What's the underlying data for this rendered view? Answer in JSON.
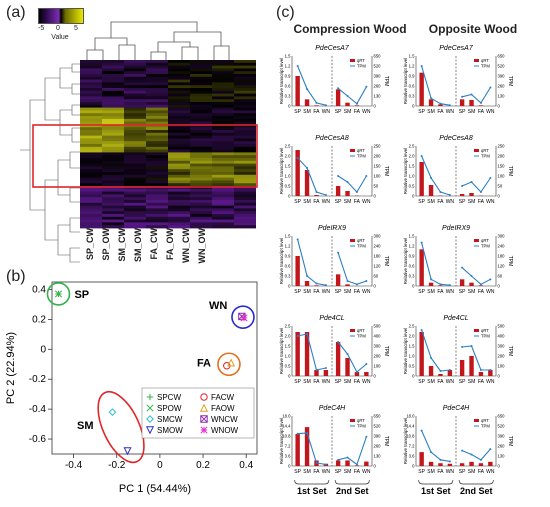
{
  "panel_a": {
    "label": "(a)",
    "colorkey": {
      "ticks": [
        "-5",
        "0",
        "5"
      ],
      "label": "Value"
    },
    "columns": [
      "SP_CW",
      "SP_OW",
      "SM_CW",
      "SM_OW",
      "FA_CW",
      "FA_OW",
      "WN_CW",
      "WN_OW"
    ]
  },
  "panel_b": {
    "label": "(b)",
    "xlabel": "PC 1 (54.44%)",
    "ylabel": "PC 2 (22.94%)",
    "xticks": [
      "-0.4",
      "-0.2",
      "0",
      "0.2",
      "0.4"
    ],
    "yticks": [
      "0.4",
      "0.2",
      "0",
      "-0.2",
      "-0.4",
      "-0.6"
    ],
    "groups": [
      "SP",
      "SM",
      "FA",
      "WN"
    ],
    "legend": [
      "SPCW",
      "SPOW",
      "SMCW",
      "SMOW",
      "FACW",
      "FAOW",
      "WNCW",
      "WNOW"
    ],
    "colors": {
      "SP": "#2fb34a",
      "SM": "#e0262a",
      "FA": "#e07020",
      "WN": "#2a2ad0"
    }
  },
  "panel_c": {
    "label": "(c)",
    "col_titles": [
      "Compression Wood",
      "Opposite Wood"
    ],
    "genes": [
      "PdeCesA7",
      "PdeCesA8",
      "PdeIRX9",
      "Pde4CL",
      "PdeC4H"
    ],
    "xcats": [
      "SP",
      "SM",
      "FA",
      "WN",
      "SP",
      "SM",
      "FA",
      "WN"
    ],
    "ylabel_left": "Relative transcript level",
    "ylabel_right": "TPM",
    "legend": [
      "qRT",
      "TPM"
    ],
    "set1": "1st Set",
    "set2": "2nd Set",
    "bar_color": "#c0161c",
    "line_color": "#2b7fc8"
  },
  "chart_data": [
    {
      "type": "bar",
      "title": "PdeCesA7 (Compression Wood)",
      "categories": [
        "SP",
        "SM",
        "FA",
        "WN",
        "SP",
        "SM",
        "FA",
        "WN"
      ],
      "series": [
        {
          "name": "qRT",
          "values": [
            0.9,
            0.2,
            0.02,
            0.0,
            0.5,
            0.1,
            0.02,
            0.0
          ]
        },
        {
          "name": "TPM",
          "values": [
            520,
            220,
            40,
            10,
            230,
            130,
            30,
            250
          ]
        }
      ],
      "ylim": [
        0,
        1.5
      ],
      "y2lim": [
        0,
        650
      ],
      "yticks": [
        "0",
        "0.3",
        "0.6",
        "0.9",
        "1.2",
        "1.5"
      ],
      "y2ticks": [
        "0",
        "130",
        "260",
        "390",
        "520",
        "650"
      ]
    },
    {
      "type": "bar",
      "title": "PdeCesA7 (Opposite Wood)",
      "categories": [
        "SP",
        "SM",
        "FA",
        "WN",
        "SP",
        "SM",
        "FA",
        "WN"
      ],
      "series": [
        {
          "name": "qRT",
          "values": [
            1.0,
            0.2,
            0.05,
            0.0,
            0.2,
            0.18,
            0.02,
            0.0
          ]
        },
        {
          "name": "TPM",
          "values": [
            520,
            100,
            30,
            10,
            120,
            150,
            40,
            240
          ]
        }
      ],
      "ylim": [
        0,
        1.5
      ],
      "y2lim": [
        0,
        650
      ],
      "yticks": [
        "0",
        "0.3",
        "0.6",
        "0.9",
        "1.2",
        "1.5"
      ],
      "y2ticks": [
        "0",
        "130",
        "260",
        "390",
        "520",
        "650"
      ]
    },
    {
      "type": "bar",
      "title": "PdeCesA8 (Compression Wood)",
      "categories": [
        "SP",
        "SM",
        "FA",
        "WN",
        "SP",
        "SM",
        "FA",
        "WN"
      ],
      "series": [
        {
          "name": "qRT",
          "values": [
            2.3,
            1.3,
            0.05,
            0.0,
            0.5,
            0.25,
            0.02,
            0.0
          ]
        },
        {
          "name": "TPM",
          "values": [
            190,
            140,
            20,
            5,
            100,
            70,
            20,
            100
          ]
        }
      ],
      "ylim": [
        0,
        2.5
      ],
      "y2lim": [
        0,
        250
      ],
      "yticks": [
        "0",
        "0.5",
        "1.0",
        "1.5",
        "2.0",
        "2.5"
      ],
      "y2ticks": [
        "0",
        "50",
        "100",
        "150",
        "200",
        "250"
      ]
    },
    {
      "type": "bar",
      "title": "PdeCesA8 (Opposite Wood)",
      "categories": [
        "SP",
        "SM",
        "FA",
        "WN",
        "SP",
        "SM",
        "FA",
        "WN"
      ],
      "series": [
        {
          "name": "qRT",
          "values": [
            1.7,
            0.55,
            0.02,
            0.0,
            0.1,
            0.15,
            0.02,
            0.0
          ]
        },
        {
          "name": "TPM",
          "values": [
            200,
            90,
            20,
            5,
            50,
            70,
            20,
            90
          ]
        }
      ],
      "ylim": [
        0,
        2.5
      ],
      "y2lim": [
        0,
        250
      ],
      "yticks": [
        "0",
        "0.5",
        "1.0",
        "1.5",
        "2.0",
        "2.5"
      ],
      "y2ticks": [
        "0",
        "50",
        "100",
        "150",
        "200",
        "250"
      ]
    },
    {
      "type": "bar",
      "title": "PdeIRX9 (Compression Wood)",
      "categories": [
        "SP",
        "SM",
        "FA",
        "WN",
        "SP",
        "SM",
        "FA",
        "WN"
      ],
      "series": [
        {
          "name": "qRT",
          "values": [
            0.9,
            0.15,
            0.02,
            0.0,
            0.35,
            0.05,
            0.0,
            0.0
          ]
        },
        {
          "name": "TPM",
          "values": [
            280,
            60,
            15,
            5,
            200,
            30,
            10,
            30
          ]
        }
      ],
      "ylim": [
        0,
        1.5
      ],
      "y2lim": [
        0,
        300
      ],
      "yticks": [
        "0",
        "0.3",
        "0.6",
        "0.9",
        "1.2",
        "1.5"
      ],
      "y2ticks": [
        "0",
        "60",
        "120",
        "180",
        "240",
        "300"
      ]
    },
    {
      "type": "bar",
      "title": "PdeIRX9 (Opposite Wood)",
      "categories": [
        "SP",
        "SM",
        "FA",
        "WN",
        "SP",
        "SM",
        "FA",
        "WN"
      ],
      "series": [
        {
          "name": "qRT",
          "values": [
            1.1,
            0.1,
            0.02,
            0.0,
            0.2,
            0.1,
            0.02,
            0.0
          ]
        },
        {
          "name": "TPM",
          "values": [
            260,
            40,
            10,
            5,
            110,
            60,
            10,
            40
          ]
        }
      ],
      "ylim": [
        0,
        1.5
      ],
      "y2lim": [
        0,
        300
      ],
      "yticks": [
        "0",
        "0.3",
        "0.6",
        "0.9",
        "1.2",
        "1.5"
      ],
      "y2ticks": [
        "0",
        "60",
        "120",
        "180",
        "240",
        "300"
      ]
    },
    {
      "type": "bar",
      "title": "Pde4CL (Compression Wood)",
      "categories": [
        "SP",
        "SM",
        "FA",
        "WN",
        "SP",
        "SM",
        "FA",
        "WN"
      ],
      "series": [
        {
          "name": "qRT",
          "values": [
            2.2,
            2.2,
            0.3,
            0.3,
            1.7,
            0.9,
            0.2,
            0.2
          ]
        },
        {
          "name": "TPM",
          "values": [
            400,
            420,
            60,
            80,
            340,
            220,
            40,
            120
          ]
        }
      ],
      "ylim": [
        0,
        2.5
      ],
      "y2lim": [
        0,
        500
      ],
      "yticks": [
        "0",
        "0.5",
        "1.0",
        "1.5",
        "2.0",
        "2.5"
      ],
      "y2ticks": [
        "0",
        "100",
        "200",
        "300",
        "400",
        "500"
      ]
    },
    {
      "type": "bar",
      "title": "Pde4CL (Opposite Wood)",
      "categories": [
        "SP",
        "SM",
        "FA",
        "WN",
        "SP",
        "SM",
        "FA",
        "WN"
      ],
      "series": [
        {
          "name": "qRT",
          "values": [
            2.2,
            0.5,
            0.1,
            0.3,
            0.8,
            1.0,
            0.2,
            0.3
          ]
        },
        {
          "name": "TPM",
          "values": [
            460,
            180,
            50,
            60,
            290,
            300,
            60,
            60
          ]
        }
      ],
      "ylim": [
        0,
        2.5
      ],
      "y2lim": [
        0,
        500
      ],
      "yticks": [
        "0",
        "0.5",
        "1.0",
        "1.5",
        "2.0",
        "2.5"
      ],
      "y2ticks": [
        "0",
        "100",
        "200",
        "300",
        "400",
        "500"
      ]
    },
    {
      "type": "bar",
      "title": "PdeC4H (Compression Wood)",
      "categories": [
        "SP",
        "SM",
        "FA",
        "WN",
        "SP",
        "SM",
        "FA",
        "WN"
      ],
      "series": [
        {
          "name": "qRT",
          "values": [
            11.5,
            14.0,
            2.0,
            0.8,
            2.0,
            2.0,
            0.2,
            1.6
          ]
        },
        {
          "name": "TPM",
          "values": [
            420,
            430,
            40,
            20,
            80,
            110,
            20,
            380
          ]
        }
      ],
      "ylim": [
        0,
        18.0
      ],
      "y2lim": [
        0,
        650
      ],
      "yticks": [
        "0",
        "3.6",
        "7.2",
        "10.8",
        "14.4",
        "18.0"
      ],
      "y2ticks": [
        "0",
        "130",
        "260",
        "390",
        "520",
        "650"
      ]
    },
    {
      "type": "bar",
      "title": "PdeC4H (Opposite Wood)",
      "categories": [
        "SP",
        "SM",
        "FA",
        "WN",
        "SP",
        "SM",
        "FA",
        "WN"
      ],
      "series": [
        {
          "name": "qRT",
          "values": [
            5.0,
            1.5,
            1.0,
            0.8,
            1.0,
            1.5,
            1.0,
            1.5
          ]
        },
        {
          "name": "TPM",
          "values": [
            460,
            180,
            80,
            60,
            200,
            150,
            80,
            220
          ]
        }
      ],
      "ylim": [
        0,
        18.0
      ],
      "y2lim": [
        0,
        650
      ],
      "yticks": [
        "0",
        "3.6",
        "7.2",
        "10.8",
        "14.4",
        "18.0"
      ],
      "y2ticks": [
        "0",
        "130",
        "260",
        "390",
        "520",
        "650"
      ]
    },
    {
      "type": "scatter",
      "xlabel": "PC 1 (54.44%)",
      "ylabel": "PC 2 (22.94%)",
      "xlim": [
        -0.5,
        0.45
      ],
      "ylim": [
        -0.7,
        0.45
      ],
      "series": [
        {
          "name": "SPCW",
          "x": [
            -0.47
          ],
          "y": [
            0.37
          ]
        },
        {
          "name": "SPOW",
          "x": [
            -0.47
          ],
          "y": [
            0.37
          ]
        },
        {
          "name": "SMCW",
          "x": [
            -0.22
          ],
          "y": [
            -0.42
          ]
        },
        {
          "name": "SMOW",
          "x": [
            -0.15
          ],
          "y": [
            -0.68
          ]
        },
        {
          "name": "FACW",
          "x": [
            0.31
          ],
          "y": [
            -0.11
          ]
        },
        {
          "name": "FAOW",
          "x": [
            0.33
          ],
          "y": [
            -0.09
          ]
        },
        {
          "name": "WNCW",
          "x": [
            0.38
          ],
          "y": [
            0.22
          ]
        },
        {
          "name": "WNOW",
          "x": [
            0.39
          ],
          "y": [
            0.21
          ]
        }
      ]
    }
  ]
}
